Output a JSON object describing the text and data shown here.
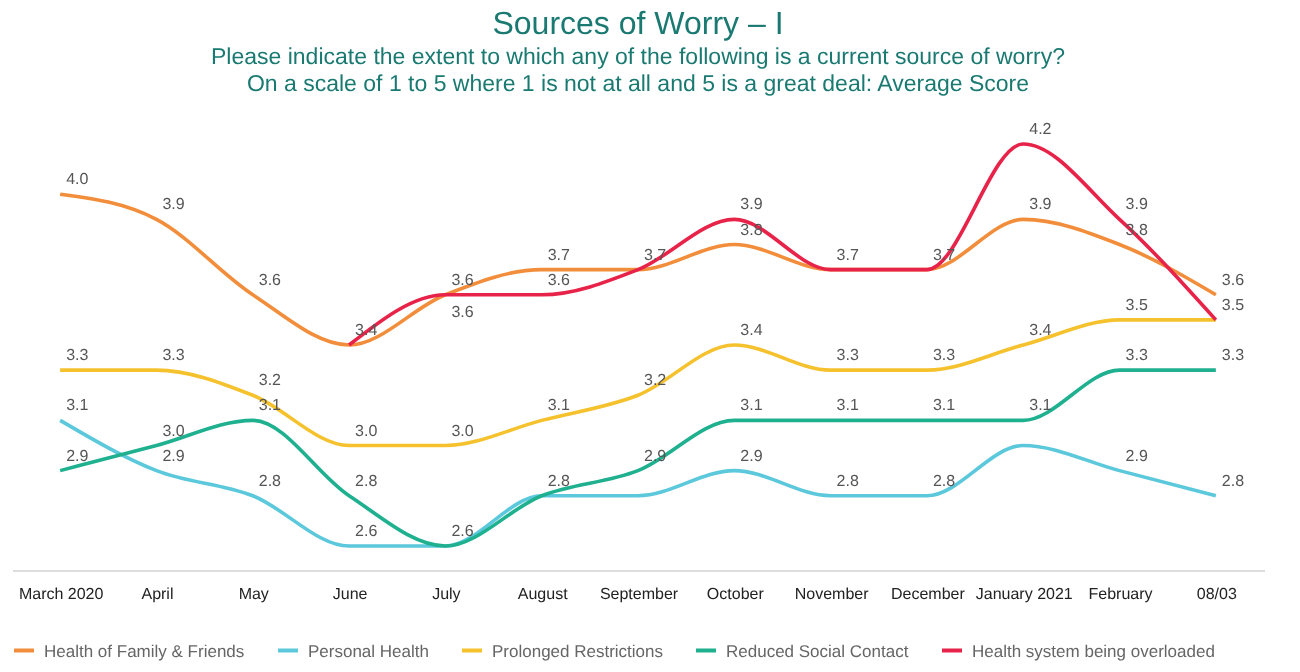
{
  "chart_data": {
    "type": "line",
    "title": "Sources of Worry – I",
    "subtitle": "Please indicate the extent to which any of the following is a current source of worry?",
    "annotations": [
      "On a scale of 1 to 5 where 1 is not at all and 5 is a great deal:  Average Score"
    ],
    "categories": [
      "March 2020",
      "April",
      "May",
      "June",
      "July",
      "August",
      "September",
      "October",
      "November",
      "December",
      "January 2021",
      "February",
      "08/03"
    ],
    "series": [
      {
        "name": "Health of Family & Friends",
        "color": "#f28e3b",
        "values": [
          4.0,
          3.9,
          3.6,
          3.4,
          3.6,
          3.7,
          3.7,
          3.8,
          3.7,
          3.7,
          3.9,
          3.8,
          3.6
        ],
        "value_labels": [
          "4.0",
          "3.9",
          "3.6",
          "3.4",
          "3.6",
          "3.7",
          "3.7",
          "3.8",
          "3.7",
          "3.7",
          "3.9",
          "3.8",
          "3.6"
        ]
      },
      {
        "name": "Personal Health",
        "color": "#5bc8dc",
        "values": [
          3.1,
          2.9,
          2.8,
          2.6,
          2.6,
          2.8,
          2.8,
          2.9,
          2.8,
          2.8,
          3.0,
          2.9,
          2.8
        ],
        "value_labels": [
          "3.1",
          "2.9",
          "2.8",
          "2.6",
          null,
          null,
          null,
          "2.9",
          "2.8",
          "2.8",
          null,
          "2.9",
          "2.8"
        ]
      },
      {
        "name": "Prolonged Restrictions",
        "color": "#f5c22e",
        "values": [
          3.3,
          3.3,
          3.2,
          3.0,
          3.0,
          3.1,
          3.2,
          3.4,
          3.3,
          3.3,
          3.4,
          3.5,
          3.5
        ],
        "value_labels": [
          "3.3",
          "3.3",
          "3.2",
          "3.0",
          "3.0",
          "3.1",
          "3.2",
          "3.4",
          "3.3",
          "3.3",
          "3.4",
          "3.5",
          null
        ]
      },
      {
        "name": "Reduced Social Contact",
        "color": "#1fb08f",
        "values": [
          2.9,
          3.0,
          3.1,
          2.8,
          2.6,
          2.8,
          2.9,
          3.1,
          3.1,
          3.1,
          3.1,
          3.3,
          3.3
        ],
        "value_labels": [
          "2.9",
          "3.0",
          "3.1",
          "2.8",
          "2.6",
          "2.8",
          "2.9",
          "3.1",
          "3.1",
          "3.1",
          "3.1",
          "3.3",
          "3.3"
        ]
      },
      {
        "name": "Health system being overloaded",
        "color": "#e8234a",
        "values": [
          null,
          null,
          null,
          3.4,
          3.6,
          3.6,
          3.7,
          3.9,
          3.7,
          3.7,
          4.2,
          3.9,
          3.5
        ],
        "value_labels": [
          null,
          null,
          null,
          null,
          "3.6",
          "3.6",
          null,
          "3.9",
          null,
          null,
          "4.2",
          "3.9",
          "3.5"
        ]
      }
    ],
    "legend": "bottom",
    "grid": false
  }
}
